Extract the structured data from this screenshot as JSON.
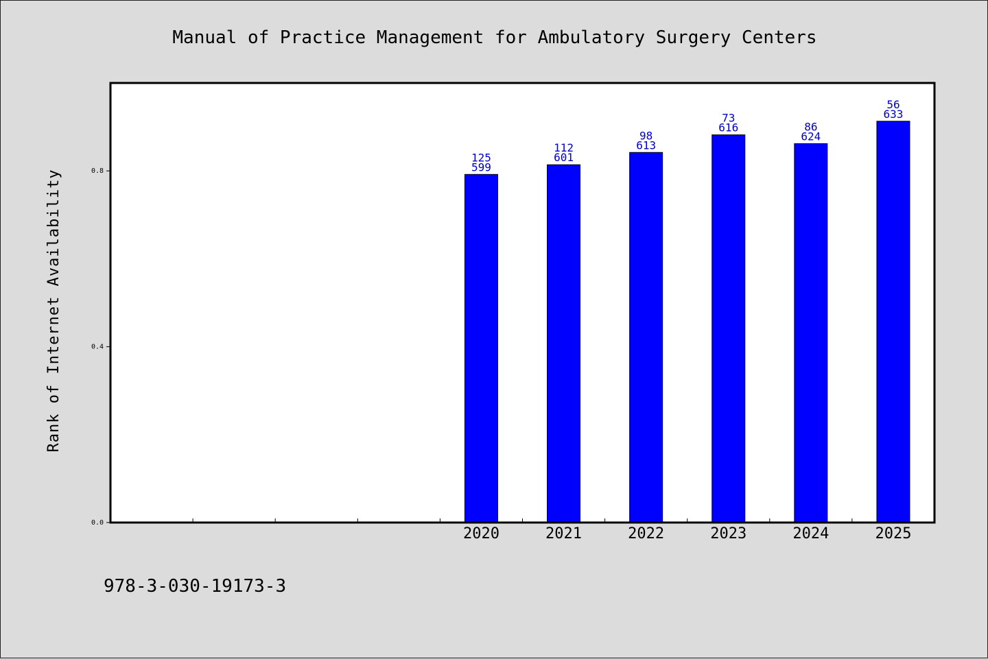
{
  "chart_data": {
    "type": "bar",
    "title": "Manual of Practice Management for Ambulatory Surgery Centers",
    "ylabel": "Rank of Internet Availability",
    "xlabel": "",
    "x_slots": 10,
    "categories": [
      "2020",
      "2021",
      "2022",
      "2023",
      "2024",
      "2025"
    ],
    "first_category_slot": 4,
    "values": [
      0.792,
      0.814,
      0.842,
      0.882,
      0.862,
      0.913
    ],
    "label_top": [
      "125",
      "112",
      "98",
      "73",
      "86",
      "56"
    ],
    "label_bottom": [
      "599",
      "601",
      "613",
      "616",
      "624",
      "633"
    ],
    "ylim": [
      0.0,
      1.0
    ],
    "yticks": [
      "0.0",
      "0.4",
      "0.8"
    ],
    "ytick_values": [
      0.0,
      0.4,
      0.8
    ],
    "grid": false,
    "legend": "none",
    "bar_color": "#0000ff",
    "label_color": "#0000cc"
  },
  "footer": {
    "isbn": "978-3-030-19173-3"
  },
  "colors": {
    "background": "#dcdcdc",
    "plot_background": "#ffffff"
  }
}
